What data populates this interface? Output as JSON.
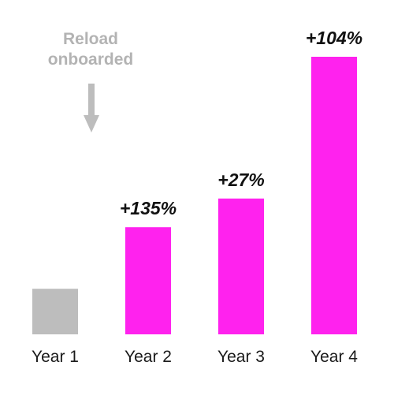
{
  "chart_data": {
    "type": "bar",
    "title": "",
    "xlabel": "",
    "ylabel": "",
    "categories": [
      "Year 1",
      "Year 2",
      "Year 3",
      "Year 4"
    ],
    "values": [
      1,
      2.35,
      2.98,
      6.09
    ],
    "data_labels": [
      "",
      "+135%",
      "+27%",
      "+104%"
    ],
    "bar_colors": [
      "#bdbdbd",
      "#ff22ee",
      "#ff22ee",
      "#ff22ee"
    ],
    "ylim": [
      0,
      6.09
    ],
    "grid": false,
    "legend": "none",
    "annotation": {
      "lines": [
        "Reload",
        "onboarded"
      ],
      "target_category": "Year 1",
      "color": "#b3b3b3",
      "arrow": "down-arrow-icon"
    }
  }
}
